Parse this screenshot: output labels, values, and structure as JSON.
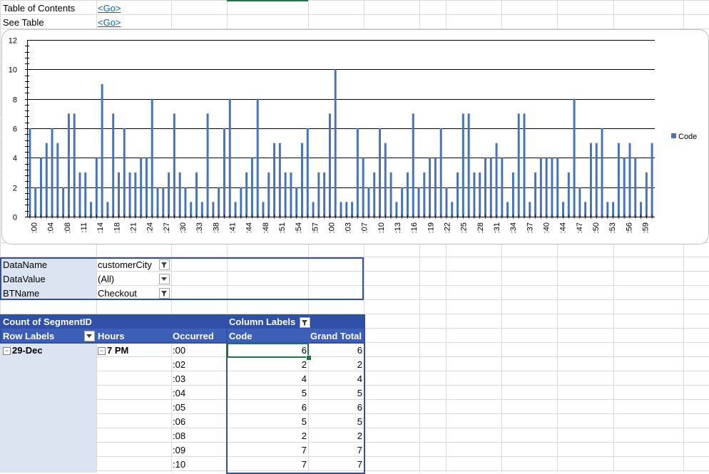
{
  "nav": {
    "toc_label": "Table of Contents",
    "toc_link": "<Go>",
    "see_table_label": "See Table",
    "see_table_link": "<Go>"
  },
  "chart_data": {
    "type": "bar",
    "title": "",
    "xlabel": "",
    "ylabel": "",
    "ylim": [
      0,
      12
    ],
    "yticks": [
      0,
      2,
      4,
      6,
      8,
      10,
      12
    ],
    "grid": true,
    "legend_position": "right",
    "series": [
      {
        "name": "Code",
        "color": "#4472c4",
        "values": [
          6,
          2,
          4,
          5,
          6,
          5,
          2,
          7,
          7,
          3,
          3,
          1,
          4,
          9,
          1,
          7,
          3,
          6,
          3,
          3,
          4,
          4,
          8,
          2,
          2,
          3,
          7,
          3,
          2,
          1,
          3,
          1,
          7,
          1,
          2,
          6,
          8,
          1,
          2,
          3,
          4,
          8,
          1,
          3,
          5,
          5,
          3,
          3,
          2,
          5,
          6,
          1,
          3,
          3,
          7,
          10,
          1,
          1,
          1,
          6,
          4,
          2,
          3,
          6,
          5,
          3,
          1,
          2,
          3,
          7,
          2,
          3,
          4,
          4,
          6,
          2,
          1,
          3,
          7,
          7,
          3,
          3,
          4,
          4,
          5,
          4,
          1,
          3,
          7,
          7,
          1,
          3,
          4,
          4,
          4,
          4,
          1,
          3,
          8,
          2,
          1,
          5,
          5,
          6,
          1,
          1,
          5,
          4,
          5,
          4,
          1,
          3,
          5
        ]
      }
    ],
    "x_tick_labels": [
      ":00",
      ":04",
      ":08",
      ":11",
      ":14",
      ":18",
      ":21",
      ":24",
      ":27",
      ":30",
      ":33",
      ":38",
      ":41",
      ":44",
      ":48",
      ":51",
      ":54",
      ":57",
      ":00",
      ":03",
      ":07",
      ":10",
      ":13",
      ":16",
      ":19",
      ":22",
      ":25",
      ":28",
      ":31",
      ":34",
      ":37",
      ":40",
      ":44",
      ":47",
      ":50",
      ":53",
      ":56",
      ":59"
    ]
  },
  "pivot_filters": [
    {
      "label": "DataName",
      "value": "customerCity",
      "icon": "filter-icon"
    },
    {
      "label": "DataValue",
      "value": "(All)",
      "icon": "dropdown-icon"
    },
    {
      "label": "BTName",
      "value": "Checkout",
      "icon": "filter-icon"
    }
  ],
  "pivot": {
    "measure": "Count of SegmentID",
    "column_labels": "Column Labels",
    "row_labels": "Row Labels",
    "hours": "Hours",
    "occurred": "Occurred",
    "code": "Code",
    "grand_total": "Grand Total",
    "date": "29-Dec",
    "hour": "7 PM",
    "rows": [
      {
        "occurred": ":00",
        "code": "6",
        "total": "6"
      },
      {
        "occurred": ":02",
        "code": "2",
        "total": "2"
      },
      {
        "occurred": ":03",
        "code": "4",
        "total": "4"
      },
      {
        "occurred": ":04",
        "code": "5",
        "total": "5"
      },
      {
        "occurred": ":05",
        "code": "6",
        "total": "6"
      },
      {
        "occurred": ":06",
        "code": "5",
        "total": "5"
      },
      {
        "occurred": ":08",
        "code": "2",
        "total": "2"
      },
      {
        "occurred": ":09",
        "code": "7",
        "total": "7"
      },
      {
        "occurred": ":10",
        "code": "7",
        "total": "7"
      }
    ]
  }
}
